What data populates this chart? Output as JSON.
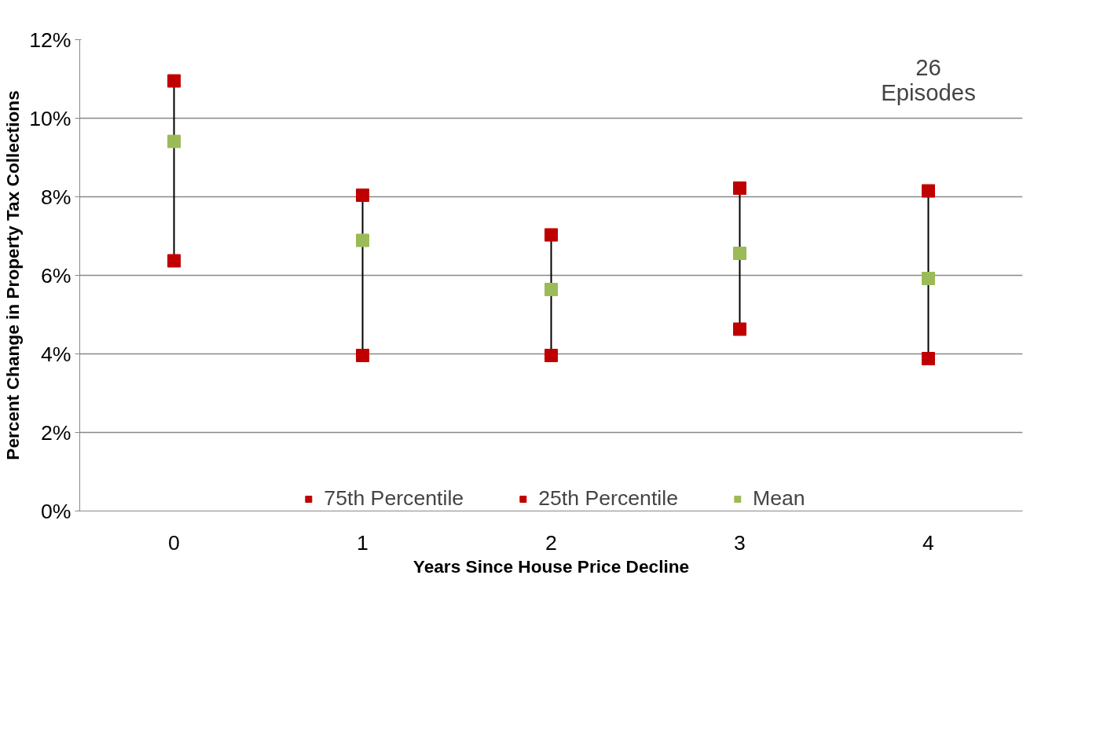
{
  "chart_data": {
    "type": "scatter",
    "xlabel": "Years Since House Price Decline",
    "ylabel": "Percent Change in Property Tax Collections",
    "categories": [
      "0",
      "1",
      "2",
      "3",
      "4"
    ],
    "series": [
      {
        "name": "75th Percentile",
        "color": "#c00000",
        "values": [
          10.95,
          8.04,
          7.03,
          8.22,
          8.15
        ]
      },
      {
        "name": "25th Percentile",
        "color": "#c00000",
        "values": [
          6.37,
          3.96,
          3.96,
          4.63,
          3.88
        ]
      },
      {
        "name": "Mean",
        "color": "#9bbb59",
        "values": [
          9.41,
          6.89,
          5.64,
          6.56,
          5.92
        ]
      }
    ],
    "ylim": [
      0,
      12
    ],
    "yticks": [
      {
        "value": 0,
        "label": "0%"
      },
      {
        "value": 2,
        "label": "2%"
      },
      {
        "value": 4,
        "label": "4%"
      },
      {
        "value": 6,
        "label": "6%"
      },
      {
        "value": 8,
        "label": "8%"
      },
      {
        "value": 10,
        "label": "10%"
      },
      {
        "value": 12,
        "label": "12%"
      }
    ],
    "annotations": [
      "26\nEpisodes"
    ],
    "grid": "y",
    "legend": "bottom",
    "marker": "square"
  }
}
